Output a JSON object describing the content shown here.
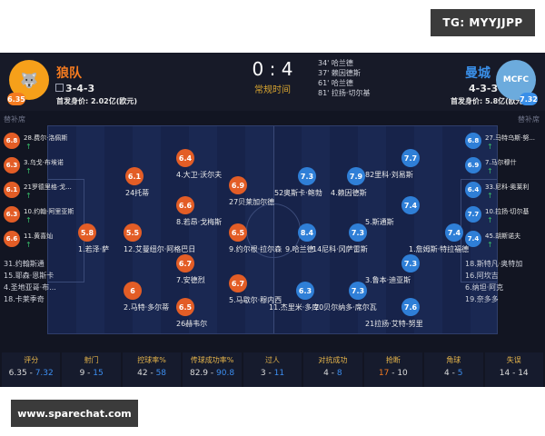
{
  "top_badge": "TG: MYYJJPP",
  "watermark": "www.sparechat.com",
  "header": {
    "home": {
      "name": "狼队",
      "formation": "3-4-3",
      "value": "首发身价: 2.02亿(欧元)",
      "rating": "6.35",
      "crest_text": "🐺"
    },
    "away": {
      "name": "曼城",
      "formation": "4-3-3",
      "value": "首发身价: 5.8亿(欧元)",
      "rating": "7.32",
      "crest_text": "MCFC"
    },
    "score": "0 : 4",
    "status": "常规时间",
    "goals": [
      "34' 哈兰德",
      "37' 赖因德斯",
      "61' 哈兰德",
      "81' 拉扬·切尔基"
    ]
  },
  "subs_title": {
    "home": "替补席",
    "away": "替补席"
  },
  "home_subs": [
    {
      "rating": "6.8",
      "name": "28.费尔·洛佩斯"
    },
    {
      "rating": "6.3",
      "name": "3.乌戈·布埃诺"
    },
    {
      "rating": "6.1",
      "name": "21罗德里格·戈..."
    },
    {
      "rating": "6.3",
      "name": "10.约翰·阿里亚斯"
    },
    {
      "rating": "6.6",
      "name": "11.黄喜灿"
    }
  ],
  "home_bench": [
    "31.约翰斯通",
    "15.耶森·恩斯卡",
    "4.圣地亚哥·布...",
    "18.卡莱季奇"
  ],
  "away_subs": [
    {
      "rating": "6.8",
      "name": "27.马特乌斯·努..."
    },
    {
      "rating": "6.9",
      "name": "7.马尔穆什"
    },
    {
      "rating": "6.4",
      "name": "33.尼科·奥莱利"
    },
    {
      "rating": "7.7",
      "name": "10.拉扬·切尔基"
    },
    {
      "rating": "7.4",
      "name": "45.胡斯诺夫"
    }
  ],
  "away_bench": [
    "18.斯特凡·奥特加",
    "16.阿坎吉",
    "6.纳坦·阿克",
    "19.奈多多"
  ],
  "home_players": [
    {
      "rating": "5.8",
      "name": "1.若泽·萨"
    },
    {
      "rating": "5.5",
      "name": "12.艾曼纽尔·阿格巴日"
    },
    {
      "rating": "6",
      "name": "2.马特·多尔蒂"
    },
    {
      "rating": "6.1",
      "name": "24托蒂"
    },
    {
      "rating": "6.4",
      "name": "4.大卫·沃尔夫"
    },
    {
      "rating": "6.6",
      "name": "8.若昂·戈梅斯"
    },
    {
      "rating": "6.7",
      "name": "7.安德烈"
    },
    {
      "rating": "6.5",
      "name": "26赫韦尔"
    },
    {
      "rating": "6.9",
      "name": "27贝莱加尔德"
    },
    {
      "rating": "6.5",
      "name": "9.约尔根·拉尔森"
    },
    {
      "rating": "6.7",
      "name": "5.马歇尔·穆内西"
    }
  ],
  "away_players": [
    {
      "rating": "7.4",
      "name": "1.詹姆斯·特拉福德"
    },
    {
      "rating": "7.4",
      "name": "5.斯通斯"
    },
    {
      "rating": "7.3",
      "name": "3.鲁本·迪亚斯"
    },
    {
      "rating": "7.6",
      "name": "21拉扬·艾特-努里"
    },
    {
      "rating": "7.7",
      "name": "82里科·刘易斯"
    },
    {
      "rating": "7.9",
      "name": "4.赖因德斯"
    },
    {
      "rating": "7.3",
      "name": "14尼科·冈萨雷斯"
    },
    {
      "rating": "7.3",
      "name": "52奥斯卡·鲍勃"
    },
    {
      "rating": "8.4",
      "name": "9.哈兰德"
    },
    {
      "rating": "6.3",
      "name": "11.杰里米·多库"
    },
    {
      "rating": "7.3",
      "name": "20贝尔纳多·席尔瓦"
    }
  ],
  "stats": [
    {
      "label": "评分",
      "home": "6.35",
      "away": "7.32",
      "lead": "away"
    },
    {
      "label": "射门",
      "home": "9",
      "away": "15",
      "lead": "away"
    },
    {
      "label": "控球率%",
      "home": "42",
      "away": "58",
      "lead": "away"
    },
    {
      "label": "传球成功率%",
      "home": "82.9",
      "away": "90.8",
      "lead": "away"
    },
    {
      "label": "过人",
      "home": "3",
      "away": "11",
      "lead": "away"
    },
    {
      "label": "对抗成功",
      "home": "4",
      "away": "8",
      "lead": "away"
    },
    {
      "label": "抢断",
      "home": "17",
      "away": "10",
      "lead": "home"
    },
    {
      "label": "角球",
      "home": "4",
      "away": "5",
      "lead": "away"
    },
    {
      "label": "失误",
      "home": "14",
      "away": "14",
      "lead": "none"
    }
  ],
  "colors": {
    "home": "#e35d26",
    "away": "#2f7fd7",
    "highlight": "#f47b20"
  }
}
